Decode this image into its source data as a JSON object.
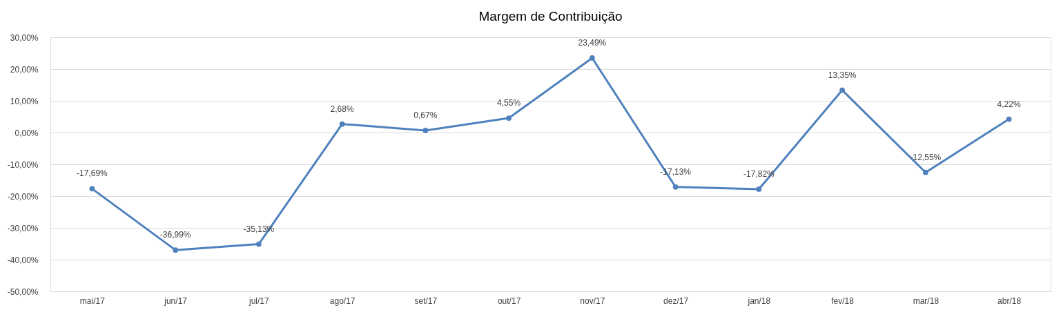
{
  "chart_data": {
    "type": "line",
    "title": "Margem de Contribuição",
    "categories": [
      "mai/17",
      "jun/17",
      "jul/17",
      "ago/17",
      "set/17",
      "out/17",
      "nov/17",
      "dez/17",
      "jan/18",
      "fev/18",
      "mar/18",
      "abr/18"
    ],
    "series": [
      {
        "color": "#4f81bd",
        "values": [
          -17.69,
          -36.99,
          -35.13,
          2.68,
          0.67,
          4.55,
          23.49,
          -17.13,
          -17.82,
          13.35,
          -12.55,
          4.22
        ],
        "value_labels": [
          "-17,69%",
          "-36,99%",
          "-35,13%",
          "2,68%",
          "0,67%",
          "4,55%",
          "23,49%",
          "-17,13%",
          "-17,82%",
          "13,35%",
          "-12,55%",
          "4,22%"
        ]
      }
    ],
    "ylim": [
      -50,
      30
    ],
    "yticks": [
      {
        "value": -50,
        "label": "-50,00%"
      },
      {
        "value": -40,
        "label": "-40,00%"
      },
      {
        "value": -30,
        "label": "-30,00%"
      },
      {
        "value": -20,
        "label": "-20,00%"
      },
      {
        "value": -10,
        "label": "-10,00%"
      },
      {
        "value": 0,
        "label": "0,00%"
      },
      {
        "value": 10,
        "label": "10,00%"
      },
      {
        "value": 20,
        "label": "20,00%"
      },
      {
        "value": 30,
        "label": "30,00%"
      }
    ],
    "grid": "y",
    "marker": "circle",
    "line_style": "solid"
  }
}
